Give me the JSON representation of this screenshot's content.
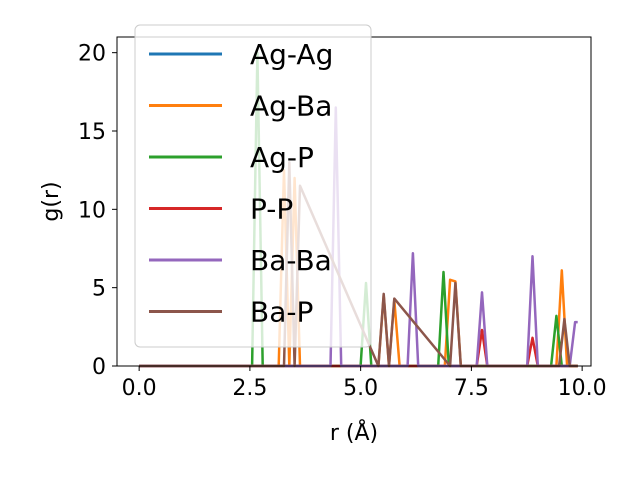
{
  "chart_data": {
    "type": "line",
    "title": "",
    "xlabel": "r (Å)",
    "ylabel": "g(r)",
    "xlim": [
      -0.5,
      10.2
    ],
    "ylim": [
      0,
      21
    ],
    "xticks": [
      "0.0",
      "2.5",
      "5.0",
      "7.5",
      "10.0"
    ],
    "yticks": [
      "0",
      "5",
      "10",
      "15",
      "20"
    ],
    "grid": false,
    "legend_position": "upper-left",
    "series": [
      {
        "name": "Ag-Ag",
        "color": "#1f77b4",
        "x": [
          0,
          9.9
        ],
        "y": [
          0,
          0
        ]
      },
      {
        "name": "Ag-Ba",
        "color": "#ff7f0e",
        "x": [
          0,
          3.15,
          3.27,
          3.39,
          3.51,
          3.63,
          5.4,
          5.52,
          5.64,
          5.76,
          5.88,
          6.9,
          7.02,
          7.14,
          7.26,
          9.42,
          9.54,
          9.66,
          9.9
        ],
        "y": [
          0,
          0,
          12.5,
          0,
          12.0,
          0,
          0,
          4.5,
          0,
          4.2,
          0,
          0,
          5.5,
          5.4,
          0,
          0,
          6.1,
          0,
          0
        ]
      },
      {
        "name": "Ag-P",
        "color": "#2ca02c",
        "x": [
          0,
          2.55,
          2.67,
          2.79,
          5.0,
          5.12,
          5.24,
          6.75,
          6.87,
          6.99,
          9.3,
          9.42,
          9.54,
          9.9
        ],
        "y": [
          0,
          0,
          20.0,
          0,
          0,
          5.3,
          0,
          0,
          6.0,
          0,
          0,
          3.2,
          0,
          0
        ]
      },
      {
        "name": "P-P",
        "color": "#d62728",
        "x": [
          0,
          7.62,
          7.74,
          7.86,
          8.76,
          8.88,
          9.0,
          9.9
        ],
        "y": [
          0,
          0,
          2.3,
          0,
          0,
          1.8,
          0,
          0
        ]
      },
      {
        "name": "Ba-Ba",
        "color": "#9467bd",
        "x": [
          0,
          4.32,
          4.44,
          4.56,
          6.06,
          6.18,
          6.3,
          7.62,
          7.74,
          7.86,
          8.76,
          8.88,
          9.0,
          9.72,
          9.84,
          9.9
        ],
        "y": [
          0,
          0,
          16.5,
          0,
          0,
          7.2,
          0,
          0,
          4.7,
          0,
          0,
          7.0,
          0,
          0,
          2.8,
          2.8
        ]
      },
      {
        "name": "Ba-P",
        "color": "#8c564b",
        "x": [
          0,
          3.27,
          3.39,
          3.51,
          3.63,
          5.4,
          5.52,
          5.64,
          5.76,
          7.02,
          7.14,
          7.26,
          9.48,
          9.6,
          9.72,
          9.9
        ],
        "y": [
          0,
          0,
          13.0,
          0,
          11.5,
          0,
          4.6,
          0,
          4.3,
          0,
          5.3,
          0,
          0,
          3.0,
          0,
          0
        ]
      }
    ]
  }
}
